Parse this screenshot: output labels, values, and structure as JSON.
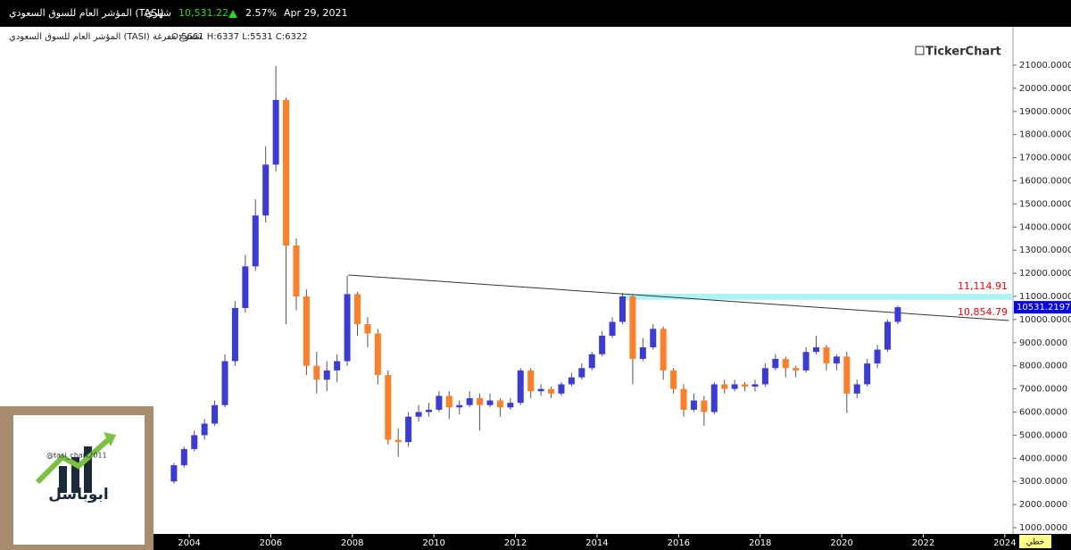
{
  "header": {
    "title": "المؤشر العام للسوق السعودي (TASI)",
    "period": "شهري",
    "price": "10,531.22",
    "change": "2.57%",
    "date": "Apr 29, 2021",
    "subtitle": "المؤشر العام للسوق السعودي (TASI)  شموع مفرغة",
    "ohlc": "O:5661  H:6337  L:5531  C:6322",
    "brand": "TickerChart",
    "scale_mode": "خطي"
  },
  "logo": {
    "handle": "@tasi_chart2011",
    "name": "ابوباسل"
  },
  "chart_data": {
    "type": "candlestick",
    "up_color": "#3b3bd9",
    "down_color": "#ff7f27",
    "x": [
      2003.625,
      2003.875,
      2004.125,
      2004.375,
      2004.625,
      2004.875,
      2005.125,
      2005.375,
      2005.625,
      2005.875,
      2006.125,
      2006.375,
      2006.625,
      2006.875,
      2007.125,
      2007.375,
      2007.625,
      2007.875,
      2008.125,
      2008.375,
      2008.625,
      2008.875,
      2009.125,
      2009.375,
      2009.625,
      2009.875,
      2010.125,
      2010.375,
      2010.625,
      2010.875,
      2011.125,
      2011.375,
      2011.625,
      2011.875,
      2012.125,
      2012.375,
      2012.625,
      2012.875,
      2013.125,
      2013.375,
      2013.625,
      2013.875,
      2014.125,
      2014.375,
      2014.625,
      2014.875,
      2015.125,
      2015.375,
      2015.625,
      2015.875,
      2016.125,
      2016.375,
      2016.625,
      2016.875,
      2017.125,
      2017.375,
      2017.625,
      2017.875,
      2018.125,
      2018.375,
      2018.625,
      2018.875,
      2019.125,
      2019.375,
      2019.625,
      2019.875,
      2020.125,
      2020.375,
      2020.625,
      2020.875,
      2021.125,
      2021.375
    ],
    "open": [
      3000,
      3700,
      4400,
      5000,
      5500,
      6300,
      8200,
      10500,
      12300,
      14500,
      16700,
      19500,
      13200,
      11000,
      8000,
      7400,
      7800,
      8200,
      11100,
      9800,
      9400,
      7600,
      4800,
      4700,
      5800,
      6000,
      6100,
      6700,
      6200,
      6300,
      6600,
      6300,
      6500,
      6200,
      6400,
      7800,
      6900,
      7000,
      6800,
      7200,
      7500,
      7900,
      8500,
      9300,
      9900,
      11000,
      8300,
      8800,
      9600,
      7800,
      7000,
      6100,
      6500,
      6000,
      7200,
      7000,
      7200,
      7100,
      7200,
      7900,
      8300,
      7900,
      7800,
      8600,
      8800,
      8100,
      8400,
      6800,
      7200,
      8100,
      8700,
      9900
    ],
    "high": [
      3800,
      4500,
      5200,
      5700,
      6500,
      8500,
      10800,
      12800,
      15200,
      17500,
      20966,
      19600,
      13500,
      11300,
      8600,
      8200,
      8500,
      11900,
      11200,
      10100,
      9600,
      7800,
      5300,
      6000,
      6300,
      6400,
      6900,
      6900,
      6500,
      6900,
      6800,
      6800,
      6600,
      6600,
      7900,
      7900,
      7200,
      7100,
      7300,
      7700,
      8100,
      8600,
      9500,
      10100,
      11160,
      11100,
      9200,
      9800,
      9700,
      7900,
      7200,
      6800,
      6700,
      7300,
      7400,
      7400,
      7300,
      7400,
      8100,
      8500,
      8400,
      8000,
      8800,
      9300,
      8900,
      8500,
      8600,
      7400,
      8300,
      8900,
      10000,
      10600
    ],
    "low": [
      2900,
      3600,
      4300,
      4800,
      5400,
      6200,
      8000,
      10300,
      12100,
      14200,
      16400,
      9800,
      10400,
      7600,
      6800,
      6900,
      7300,
      8000,
      9300,
      8800,
      7200,
      4600,
      4068,
      4500,
      5600,
      5800,
      6000,
      5700,
      5900,
      6200,
      5200,
      6200,
      5800,
      6100,
      6300,
      6600,
      6700,
      6600,
      6700,
      7100,
      7400,
      7800,
      8400,
      9200,
      9800,
      7200,
      8200,
      8700,
      7400,
      6800,
      5800,
      6000,
      5400,
      5900,
      6800,
      6900,
      6900,
      6900,
      7100,
      7800,
      7500,
      7500,
      7700,
      8500,
      7800,
      7800,
      5960,
      6600,
      7100,
      7900,
      8600,
      9800
    ],
    "close": [
      3700,
      4400,
      5000,
      5500,
      6300,
      8200,
      10500,
      12300,
      14500,
      16700,
      19500,
      13200,
      11000,
      8000,
      7400,
      7800,
      8200,
      11100,
      9800,
      9400,
      7600,
      4800,
      4700,
      5800,
      6000,
      6100,
      6700,
      6200,
      6300,
      6600,
      6300,
      6500,
      6200,
      6400,
      7800,
      6900,
      7000,
      6800,
      7200,
      7500,
      7900,
      8500,
      9300,
      9900,
      11000,
      8300,
      8800,
      9600,
      7800,
      7000,
      6100,
      6500,
      6000,
      7200,
      7000,
      7200,
      7100,
      7200,
      7900,
      8300,
      7900,
      7800,
      8600,
      8800,
      8100,
      8400,
      6800,
      7200,
      8100,
      8700,
      9900,
      10531
    ],
    "xlim": [
      1999.36,
      2024.2
    ],
    "ylim": [
      730,
      22544
    ],
    "xticks": [
      2004,
      2006,
      2008,
      2010,
      2012,
      2014,
      2016,
      2018,
      2020,
      2022,
      2024
    ],
    "yticks": [
      {
        "value": 1000,
        "label": "1000.0000"
      },
      {
        "value": 2000,
        "label": "2000.0000"
      },
      {
        "value": 3000,
        "label": "3000.0000"
      },
      {
        "value": 4000,
        "label": "4000.0000"
      },
      {
        "value": 5000,
        "label": "5000.0000"
      },
      {
        "value": 6000,
        "label": "6000.0000"
      },
      {
        "value": 7000,
        "label": "7000.0000"
      },
      {
        "value": 8000,
        "label": "8000.0000"
      },
      {
        "value": 9000,
        "label": "9000.0000"
      },
      {
        "value": 10000,
        "label": "10000.0000"
      },
      {
        "value": 11000,
        "label": "11000.0000"
      },
      {
        "value": 12000,
        "label": "12000.0000"
      },
      {
        "value": 13000,
        "label": "13000.0000"
      },
      {
        "value": 14000,
        "label": "14000.0000"
      },
      {
        "value": 15000,
        "label": "15000.0000"
      },
      {
        "value": 16000,
        "label": "16000.0000"
      },
      {
        "value": 17000,
        "label": "17000.0000"
      },
      {
        "value": 18000,
        "label": "18000.0000"
      },
      {
        "value": 19000,
        "label": "19000.0000"
      },
      {
        "value": 20000,
        "label": "20000.0000"
      },
      {
        "value": 21000,
        "label": "21000.0000"
      }
    ],
    "levels": [
      {
        "value": 11114.91,
        "label": "11,114.91",
        "color": "#ff0000"
      },
      {
        "value": 10854.79,
        "label": "10,854.79",
        "color": "#ff0000"
      }
    ],
    "band": {
      "from_x": 2014.6,
      "color": "#aef3f5"
    },
    "last_price": {
      "value": 10531.2197,
      "color": "#0000ee"
    },
    "trendline": {
      "x": [
        2007.9,
        2024.1
      ],
      "y": [
        11927,
        9958
      ],
      "color": "#333333"
    }
  }
}
